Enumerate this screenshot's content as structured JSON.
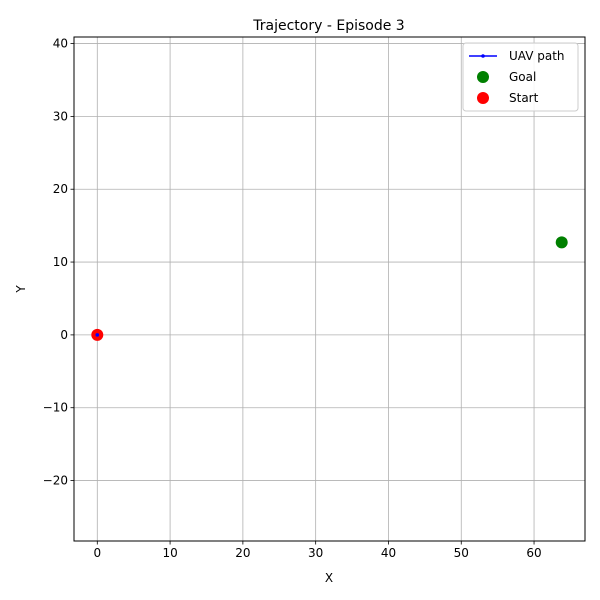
{
  "chart_data": {
    "type": "scatter",
    "title": "Trajectory - Episode 3",
    "xlabel": "X",
    "ylabel": "Y",
    "xlim": [
      -3.2,
      67.0
    ],
    "ylim": [
      -28.3,
      40.9
    ],
    "xticks": [
      0,
      10,
      20,
      30,
      40,
      50,
      60
    ],
    "yticks": [
      -20,
      -10,
      0,
      10,
      20,
      30,
      40
    ],
    "xtick_labels": [
      "0",
      "10",
      "20",
      "30",
      "40",
      "50",
      "60"
    ],
    "ytick_labels": [
      "−20",
      "−10",
      "0",
      "10",
      "20",
      "30",
      "40"
    ],
    "grid": true,
    "legend_position": "top-right",
    "series": [
      {
        "name": "UAV path",
        "kind": "line",
        "color": "#0000ff",
        "points": [
          [
            0,
            0
          ]
        ]
      },
      {
        "name": "Goal",
        "kind": "scatter",
        "color": "#008000",
        "points": [
          [
            63.8,
            12.7
          ]
        ]
      },
      {
        "name": "Start",
        "kind": "scatter",
        "color": "#ff0000",
        "points": [
          [
            0,
            0
          ]
        ]
      }
    ]
  }
}
